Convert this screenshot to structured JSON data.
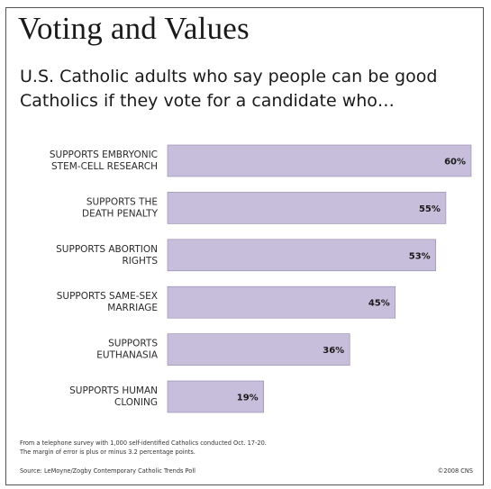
{
  "title": "Voting and Values",
  "subtitle": "U.S. Catholic adults who say people can be good Catholics if they vote for a candidate who…",
  "colors": {
    "bar": "#c7bedb",
    "bar_border": "#8f87a8",
    "text": "#1a1a1a"
  },
  "chart_data": {
    "type": "bar",
    "orientation": "horizontal",
    "categories": [
      [
        "SUPPORTS EMBRYONIC",
        "STEM-CELL RESEARCH"
      ],
      [
        "SUPPORTS THE",
        "DEATH PENALTY"
      ],
      [
        "SUPPORTS ABORTION",
        "RIGHTS"
      ],
      [
        "SUPPORTS SAME-SEX",
        "MARRIAGE"
      ],
      [
        "SUPPORTS",
        "EUTHANASIA"
      ],
      [
        "SUPPORTS HUMAN",
        "CLONING"
      ]
    ],
    "values": [
      60,
      55,
      53,
      45,
      36,
      19
    ],
    "value_labels": [
      "60%",
      "55%",
      "53%",
      "45%",
      "36%",
      "19%"
    ],
    "xlim": [
      0,
      60
    ],
    "grid": false,
    "legend": "none"
  },
  "footnote": {
    "line1": "From a telephone survey with 1,000 self-identified Catholics conducted Oct. 17-20.",
    "line2": "The margin of error is plus or minus 3.2 percentage points."
  },
  "source": "Source: LeMoyne/Zogby Contemporary Catholic Trends Poll",
  "credit": "©2008 CNS"
}
